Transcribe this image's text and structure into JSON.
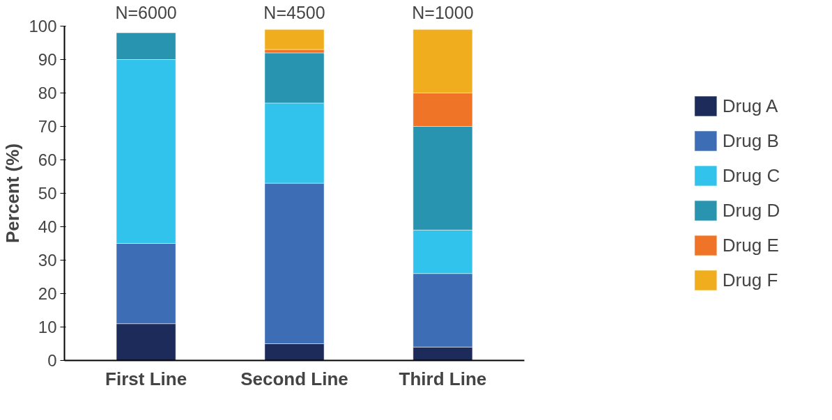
{
  "chart_data": {
    "type": "bar",
    "stacked": true,
    "ylabel": "Percent (%)",
    "categories": [
      "First Line",
      "Second Line",
      "Third Line"
    ],
    "series": [
      {
        "name": "Drug A",
        "color": "#1c2b5a",
        "values": [
          11,
          5,
          4
        ]
      },
      {
        "name": "Drug B",
        "color": "#3d6db5",
        "values": [
          24,
          48,
          22
        ]
      },
      {
        "name": "Drug C",
        "color": "#31c3eb",
        "values": [
          55,
          24,
          13
        ]
      },
      {
        "name": "Drug D",
        "color": "#2894b0",
        "values": [
          8,
          15,
          31
        ]
      },
      {
        "name": "Drug E",
        "color": "#ef7428",
        "values": [
          null,
          1,
          10
        ]
      },
      {
        "name": "Drug F",
        "color": "#f0ae1e",
        "values": [
          null,
          6,
          19
        ]
      }
    ],
    "annotations": [
      "N=6000",
      "N=4500",
      "N=1000"
    ],
    "ylim": [
      0,
      100
    ],
    "yticks": [
      0,
      10,
      20,
      30,
      40,
      50,
      60,
      70,
      80,
      90,
      100
    ],
    "grid": false,
    "legend": "right"
  }
}
